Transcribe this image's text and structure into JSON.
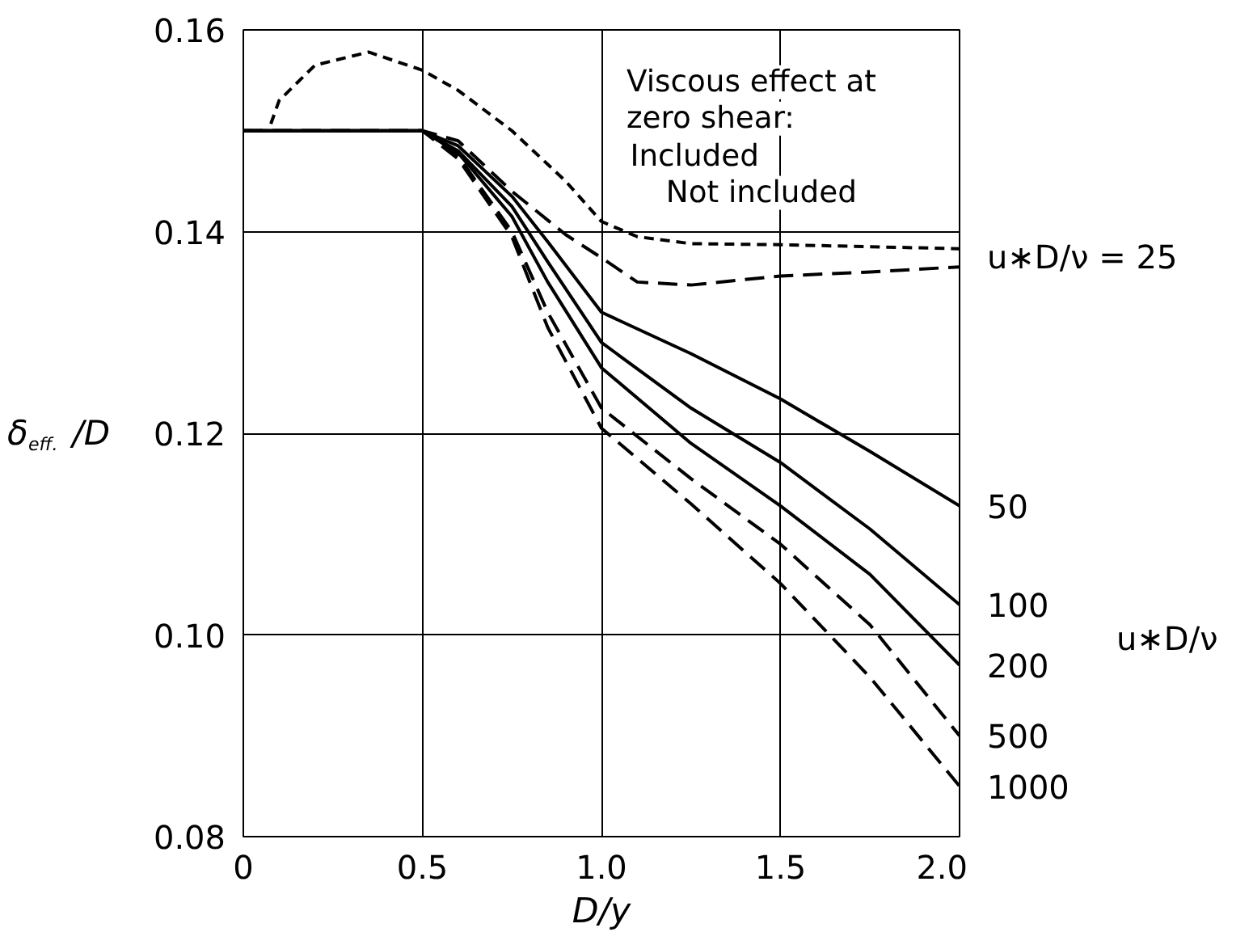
{
  "chart_data": {
    "type": "line",
    "xlabel": "D/y",
    "ylabel": "δ$_{eff.}$/D",
    "xlim": [
      0,
      2.0
    ],
    "ylim": [
      0.08,
      0.16
    ],
    "xticks": [
      0,
      0.5,
      {
        "value": 1.0,
        "label": "1.0"
      },
      {
        "value": 1.5,
        "label": "1.5"
      },
      {
        "value": 2.0,
        "label": "2.0"
      }
    ],
    "yticks": [
      {
        "value": 0.08,
        "label": "0.08"
      },
      {
        "value": 0.1,
        "label": "0.10"
      },
      {
        "value": 0.12,
        "label": "0.12"
      },
      {
        "value": 0.14,
        "label": "0.14"
      },
      {
        "value": 0.16,
        "label": "0.16"
      }
    ],
    "grid": true,
    "color": "#000000",
    "series": [
      {
        "line_style": "dotted",
        "x": [
          0,
          0.07,
          0.1,
          0.2,
          0.35,
          0.5,
          0.6,
          0.75,
          0.9,
          1.0,
          1.1,
          1.25,
          1.5,
          2.0
        ],
        "values": [
          0.15,
          0.15,
          0.153,
          0.1565,
          0.1578,
          0.156,
          0.154,
          0.15,
          0.145,
          0.141,
          0.1395,
          0.1388,
          0.1387,
          0.1383
        ]
      },
      {
        "line_style": "dashed",
        "x": [
          0,
          0.5,
          0.6,
          0.75,
          0.9,
          1.0,
          1.1,
          1.25,
          1.5,
          1.75,
          2.0
        ],
        "values": [
          0.15,
          0.15,
          0.149,
          0.144,
          0.1397,
          0.1374,
          0.135,
          0.1347,
          0.1356,
          0.136,
          0.1365
        ]
      },
      {
        "name": "50",
        "line_style": "solid",
        "x": [
          0,
          0.5,
          0.6,
          0.75,
          0.85,
          1.0,
          1.25,
          1.5,
          1.75,
          2.0
        ],
        "values": [
          0.15,
          0.15,
          0.1485,
          0.1435,
          0.139,
          0.132,
          0.1279,
          0.1234,
          0.1182,
          0.1128
        ]
      },
      {
        "name": "100",
        "line_style": "solid",
        "x": [
          0,
          0.5,
          0.6,
          0.75,
          0.85,
          1.0,
          1.25,
          1.5,
          1.75,
          2.0
        ],
        "values": [
          0.15,
          0.15,
          0.148,
          0.1425,
          0.137,
          0.129,
          0.1225,
          0.1171,
          0.1105,
          0.103
        ]
      },
      {
        "name": "200",
        "line_style": "solid",
        "x": [
          0,
          0.5,
          0.6,
          0.75,
          0.85,
          1.0,
          1.25,
          1.5,
          1.75,
          2.0
        ],
        "values": [
          0.15,
          0.15,
          0.1478,
          0.1415,
          0.135,
          0.1265,
          0.119,
          0.1128,
          0.106,
          0.097
        ]
      },
      {
        "name": "500",
        "line_style": "dashed",
        "x": [
          0,
          0.5,
          0.6,
          0.75,
          0.85,
          1.0,
          1.25,
          1.5,
          1.75,
          2.0
        ],
        "values": [
          0.15,
          0.15,
          0.1475,
          0.14,
          0.132,
          0.1225,
          0.1155,
          0.109,
          0.101,
          0.09
        ]
      },
      {
        "name": "1000",
        "line_style": "dashed",
        "x": [
          0,
          0.5,
          0.6,
          0.75,
          0.85,
          1.0,
          1.25,
          1.5,
          1.75,
          2.0
        ],
        "values": [
          0.15,
          0.15,
          0.1472,
          0.1395,
          0.1305,
          0.1205,
          0.113,
          0.1051,
          0.0958,
          0.085
        ]
      }
    ],
    "annotations": [
      "Viscous effect at",
      "zero shear:",
      "Included",
      "Not included",
      {
        "text": "u∗D/ν = 25",
        "x": 2.0,
        "y": 0.1375
      },
      "u∗D/ν"
    ]
  }
}
